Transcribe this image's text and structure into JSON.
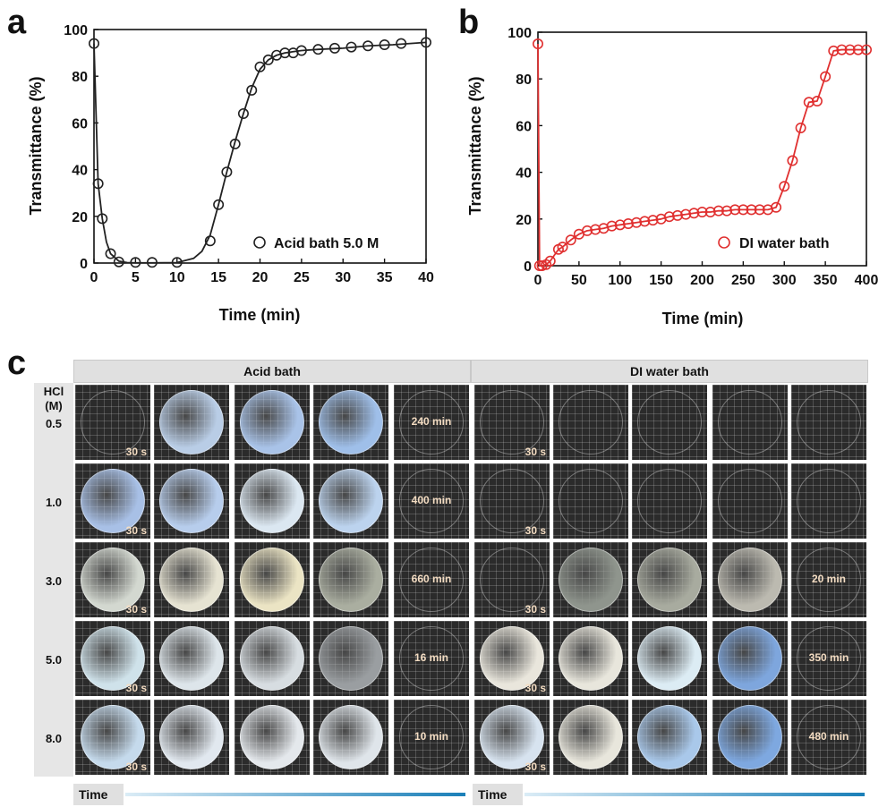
{
  "panels": {
    "a_label": "a",
    "b_label": "b",
    "c_label": "c"
  },
  "chart_data": [
    {
      "type": "scatter",
      "panel": "a",
      "xlabel": "Time (min)",
      "ylabel": "Transmittance (%)",
      "xlim": [
        0,
        40
      ],
      "ylim": [
        0,
        100
      ],
      "xticks": [
        "0",
        "5",
        "10",
        "15",
        "20",
        "25",
        "30",
        "35",
        "40"
      ],
      "yticks": [
        "0",
        "20",
        "40",
        "60",
        "80",
        "100"
      ],
      "legend_position": "bottom-right",
      "series": [
        {
          "name": "Acid bath 5.0 M",
          "color": "#222222",
          "x": [
            0,
            0.5,
            1,
            2,
            3,
            5,
            7,
            10,
            14,
            15,
            16,
            17,
            18,
            19,
            20,
            21,
            22,
            23,
            24,
            25,
            27,
            29,
            31,
            33,
            35,
            37,
            40
          ],
          "y": [
            94,
            34,
            19,
            4,
            0.5,
            0.3,
            0.3,
            0.3,
            9.5,
            25,
            39,
            51,
            64,
            74,
            84,
            87,
            89,
            90,
            90,
            91,
            91.5,
            92,
            92.5,
            93,
            93.5,
            94,
            94.5
          ]
        }
      ],
      "line": {
        "x": [
          0,
          0.5,
          1,
          1.5,
          2,
          3,
          4,
          5,
          7,
          10,
          12,
          13,
          14,
          15,
          16,
          17,
          18,
          19,
          20,
          21,
          22,
          23,
          24,
          25,
          27,
          30,
          33,
          36,
          40
        ],
        "y": [
          94,
          34,
          19,
          9,
          4,
          0.8,
          0.2,
          0.1,
          0.1,
          0.2,
          2,
          5,
          12,
          25,
          39,
          52,
          64,
          75,
          83,
          87,
          89,
          90,
          90.5,
          91,
          91.5,
          92,
          93,
          93.5,
          94.5
        ]
      }
    },
    {
      "type": "scatter",
      "panel": "b",
      "xlabel": "Time (min)",
      "ylabel": "Transmittance (%)",
      "xlim": [
        0,
        400
      ],
      "ylim": [
        0,
        100
      ],
      "xticks": [
        "0",
        "50",
        "100",
        "150",
        "200",
        "250",
        "300",
        "350",
        "400"
      ],
      "yticks": [
        "0",
        "20",
        "40",
        "60",
        "80",
        "100"
      ],
      "legend_position": "bottom-right",
      "series": [
        {
          "name": "DI water bath",
          "color": "#e03030",
          "x": [
            0,
            2,
            5,
            10,
            15,
            25,
            30,
            40,
            50,
            60,
            70,
            80,
            90,
            100,
            110,
            120,
            130,
            140,
            150,
            160,
            170,
            180,
            190,
            200,
            210,
            220,
            230,
            240,
            250,
            260,
            270,
            280,
            290,
            300,
            310,
            320,
            330,
            340,
            350,
            360,
            370,
            380,
            390,
            400
          ],
          "y": [
            95,
            0,
            0,
            0.5,
            2,
            7,
            8,
            11,
            13.5,
            15,
            15.5,
            16,
            17,
            17.5,
            18,
            18.5,
            19,
            19.5,
            20,
            21,
            21.5,
            22,
            22.5,
            23,
            23,
            23.5,
            23.5,
            24,
            24,
            24,
            24,
            24,
            25,
            34,
            45,
            59,
            70,
            70.5,
            81,
            92,
            92.5,
            92.5,
            92.5,
            92.5
          ]
        }
      ]
    }
  ],
  "table": {
    "acid_header": "Acid bath",
    "water_header": "DI water bath",
    "hcl_label_1": "HCl",
    "hcl_label_2": "(M)",
    "start_time": "30 s",
    "time_label": "Time",
    "rows": [
      {
        "conc": "0.5",
        "acid_final": "240 min",
        "water_final": ""
      },
      {
        "conc": "1.0",
        "acid_final": "400 min",
        "water_final": ""
      },
      {
        "conc": "3.0",
        "acid_final": "660 min",
        "water_final": "20 min"
      },
      {
        "conc": "5.0",
        "acid_final": "16 min",
        "water_final": "350 min"
      },
      {
        "conc": "8.0",
        "acid_final": "10 min",
        "water_final": "480 min"
      }
    ]
  }
}
